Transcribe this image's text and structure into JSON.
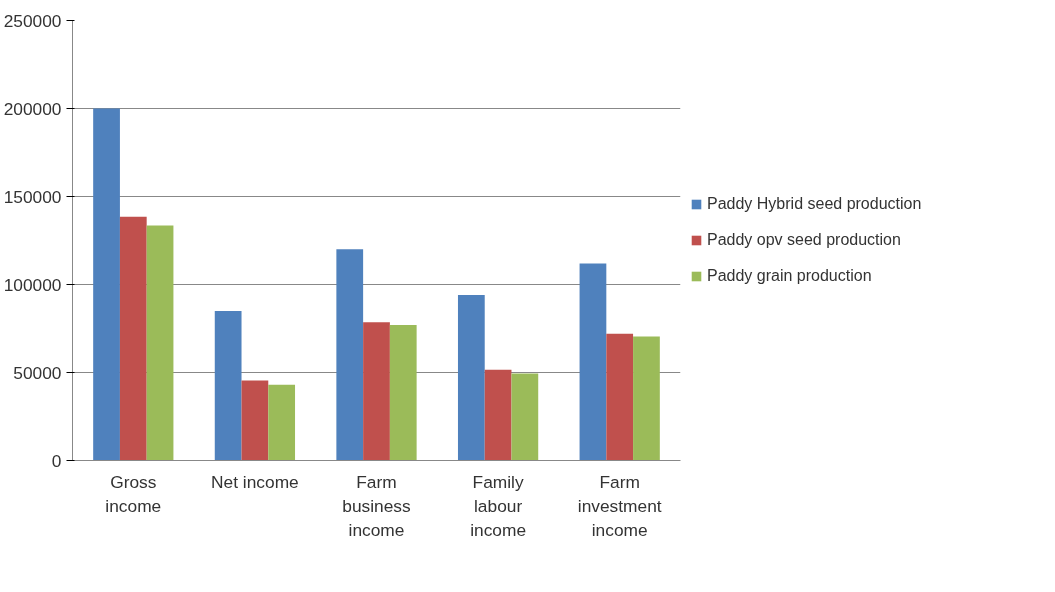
{
  "chart_data": {
    "type": "bar",
    "categories": [
      "Gross income",
      "Net income",
      "Farm business income",
      "Family labour income",
      "Farm investment income"
    ],
    "series": [
      {
        "name": "Paddy Hybrid seed production",
        "color": "#4f81bd",
        "values": [
          200000,
          85000,
          120000,
          94000,
          112000
        ]
      },
      {
        "name": "Paddy opv seed production",
        "color": "#c0504d",
        "values": [
          138500,
          45500,
          78500,
          51500,
          72000
        ]
      },
      {
        "name": "Paddy grain production",
        "color": "#9bbb59",
        "values": [
          133500,
          43000,
          77000,
          49500,
          70500
        ]
      }
    ],
    "ylim": [
      0,
      250000
    ],
    "yticks": [
      0,
      50000,
      100000,
      150000,
      200000,
      250000
    ],
    "grid": "y",
    "legend": "right"
  }
}
